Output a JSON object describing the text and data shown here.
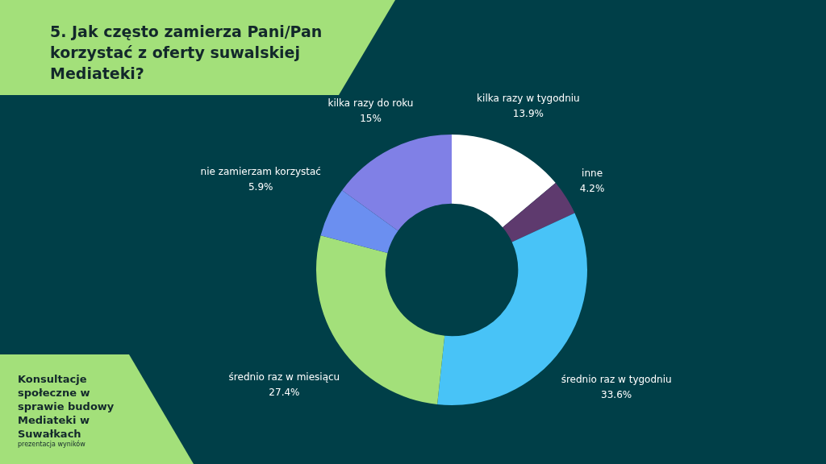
{
  "chart_data": {
    "type": "donut",
    "title": "5. Jak często zamierza Pani/Pan korzystać z oferty suwalskiej Mediateki?",
    "categories": [
      "kilka razy w tygodniu",
      "inne",
      "średnio raz w tygodniu",
      "średnio raz w miesiącu",
      "nie zamierzam korzystać",
      "kilka razy do roku"
    ],
    "values": [
      13.9,
      4.2,
      33.6,
      27.4,
      5.9,
      15
    ],
    "value_labels": [
      "13.9%",
      "4.2%",
      "33.6%",
      "27.4%",
      "5.9%",
      "15%"
    ],
    "colors": [
      "#ffffff",
      "#5e3a6e",
      "#48c3f7",
      "#a3e07a",
      "#6b8ff0",
      "#8080e6"
    ],
    "annotations": [
      "Konsultacje społeczne w sprawie budowy Mediateki w Suwałkach",
      "prezentacja wyników"
    ]
  }
}
